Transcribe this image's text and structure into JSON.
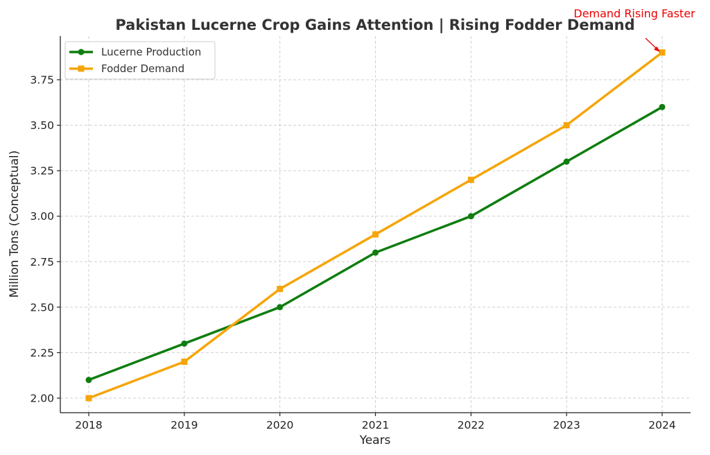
{
  "chart_data": {
    "type": "line",
    "title": "Pakistan Lucerne Crop Gains Attention | Rising Fodder Demand",
    "xlabel": "Years",
    "ylabel": "Million Tons (Conceptual)",
    "x": [
      "2018",
      "2019",
      "2020",
      "2021",
      "2022",
      "2023",
      "2024"
    ],
    "ylim": [
      1.92,
      3.99
    ],
    "yticks": [
      "2.00",
      "2.25",
      "2.50",
      "2.75",
      "3.00",
      "3.25",
      "3.50",
      "3.75"
    ],
    "grid": true,
    "legend_position": "top-left",
    "series": [
      {
        "name": "Lucerne Production",
        "values": [
          2.1,
          2.3,
          2.5,
          2.8,
          3.0,
          3.3,
          3.6
        ],
        "color": "#0f7d0f",
        "marker": "circle"
      },
      {
        "name": "Fodder Demand",
        "values": [
          2.0,
          2.2,
          2.6,
          2.9,
          3.2,
          3.5,
          3.9
        ],
        "color": "#f5a50a",
        "marker": "square"
      }
    ],
    "annotations": [
      {
        "text": "Demand Rising Faster",
        "x": "2024",
        "y": 3.9,
        "color": "#ee0000"
      }
    ]
  }
}
